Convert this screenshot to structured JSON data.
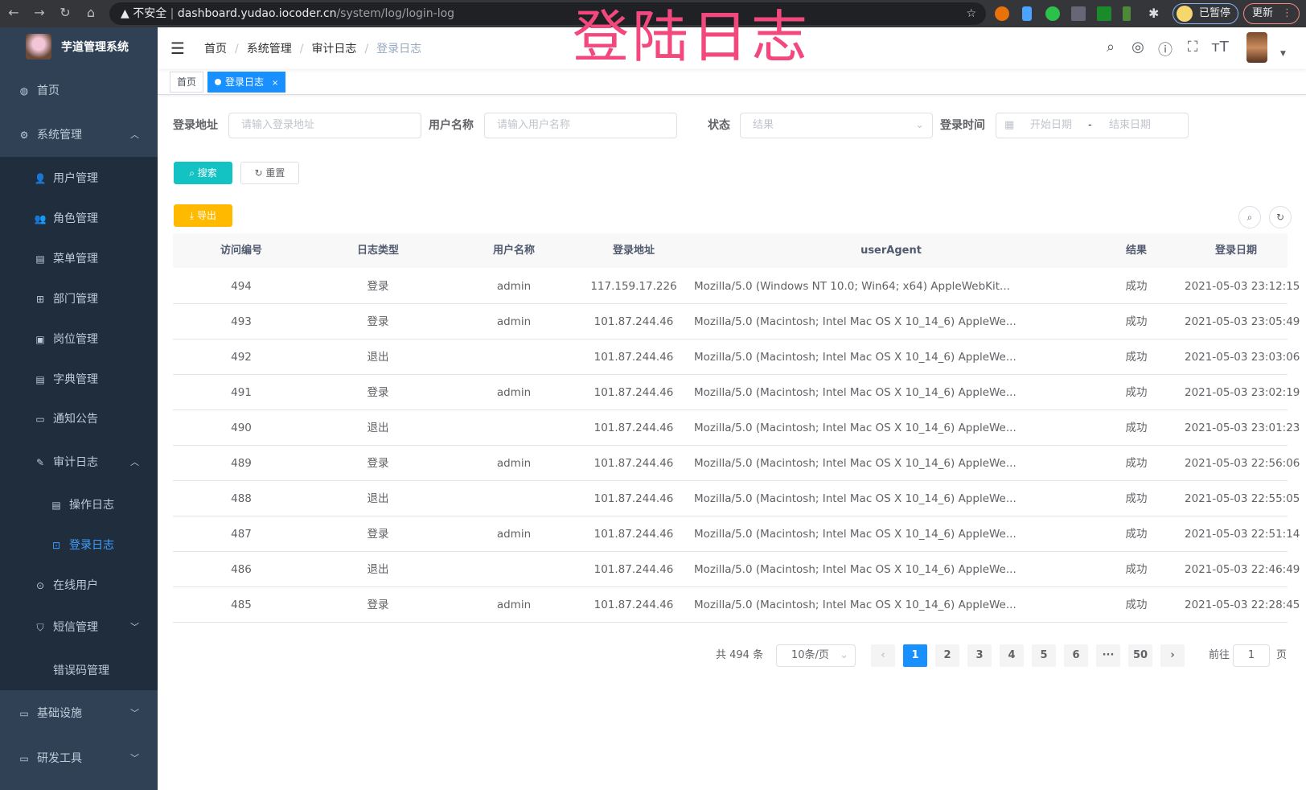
{
  "browser": {
    "url_host": "dashboard.yudao.iocoder.cn",
    "url_path": "/system/log/login-log",
    "security": "不安全",
    "profile_label": "已暂停",
    "update_label": "更新"
  },
  "overlay_title": "登陆日志",
  "app": {
    "title": "芋道管理系统"
  },
  "sidebar": {
    "items": [
      {
        "label": "首页",
        "icon": "dashboard-icon"
      },
      {
        "label": "系统管理",
        "icon": "gear-icon"
      },
      {
        "label": "用户管理",
        "icon": "user-icon"
      },
      {
        "label": "角色管理",
        "icon": "role-icon"
      },
      {
        "label": "菜单管理",
        "icon": "menu-icon"
      },
      {
        "label": "部门管理",
        "icon": "tree-icon"
      },
      {
        "label": "岗位管理",
        "icon": "post-icon"
      },
      {
        "label": "字典管理",
        "icon": "dict-icon"
      },
      {
        "label": "通知公告",
        "icon": "message-icon"
      },
      {
        "label": "审计日志",
        "icon": "edit-icon"
      },
      {
        "label": "操作日志",
        "icon": "form-icon"
      },
      {
        "label": "登录日志",
        "icon": "logininfor-icon"
      },
      {
        "label": "在线用户",
        "icon": "online-icon"
      },
      {
        "label": "短信管理",
        "icon": "shield-icon"
      },
      {
        "label": "错误码管理",
        "icon": "code-icon"
      },
      {
        "label": "基础设施",
        "icon": "monitor-icon"
      },
      {
        "label": "研发工具",
        "icon": "tool-icon"
      }
    ],
    "active": "登录日志"
  },
  "breadcrumb": [
    "首页",
    "系统管理",
    "审计日志",
    "登录日志"
  ],
  "tags": [
    {
      "label": "首页"
    },
    {
      "label": "登录日志",
      "close": "×"
    }
  ],
  "filters": {
    "address": {
      "label": "登录地址",
      "placeholder": "请输入登录地址"
    },
    "username": {
      "label": "用户名称",
      "placeholder": "请输入用户名称"
    },
    "status": {
      "label": "状态",
      "placeholder": "结果"
    },
    "time": {
      "label": "登录时间",
      "start_placeholder": "开始日期",
      "sep": "-",
      "end_placeholder": "结束日期"
    }
  },
  "buttons": {
    "search": "搜索",
    "reset": "重置",
    "export": "导出"
  },
  "colors": {
    "primary": "#1890ff",
    "search": "#13c2c2",
    "export": "#ffba00",
    "sidebar": "#304156",
    "submenu": "#1f2d3d",
    "overlay": "#f2487d"
  },
  "table": {
    "columns": [
      "访问编号",
      "日志类型",
      "用户名称",
      "登录地址",
      "userAgent",
      "结果",
      "登录日期"
    ],
    "rows": [
      [
        "494",
        "登录",
        "admin",
        "117.159.17.226",
        "Mozilla/5.0 (Windows NT 10.0; Win64; x64) AppleWebKit...",
        "成功",
        "2021-05-03 23:12:15"
      ],
      [
        "493",
        "登录",
        "admin",
        "101.87.244.46",
        "Mozilla/5.0 (Macintosh; Intel Mac OS X 10_14_6) AppleWe...",
        "成功",
        "2021-05-03 23:05:49"
      ],
      [
        "492",
        "退出",
        "",
        "101.87.244.46",
        "Mozilla/5.0 (Macintosh; Intel Mac OS X 10_14_6) AppleWe...",
        "成功",
        "2021-05-03 23:03:06"
      ],
      [
        "491",
        "登录",
        "admin",
        "101.87.244.46",
        "Mozilla/5.0 (Macintosh; Intel Mac OS X 10_14_6) AppleWe...",
        "成功",
        "2021-05-03 23:02:19"
      ],
      [
        "490",
        "退出",
        "",
        "101.87.244.46",
        "Mozilla/5.0 (Macintosh; Intel Mac OS X 10_14_6) AppleWe...",
        "成功",
        "2021-05-03 23:01:23"
      ],
      [
        "489",
        "登录",
        "admin",
        "101.87.244.46",
        "Mozilla/5.0 (Macintosh; Intel Mac OS X 10_14_6) AppleWe...",
        "成功",
        "2021-05-03 22:56:06"
      ],
      [
        "488",
        "退出",
        "",
        "101.87.244.46",
        "Mozilla/5.0 (Macintosh; Intel Mac OS X 10_14_6) AppleWe...",
        "成功",
        "2021-05-03 22:55:05"
      ],
      [
        "487",
        "登录",
        "admin",
        "101.87.244.46",
        "Mozilla/5.0 (Macintosh; Intel Mac OS X 10_14_6) AppleWe...",
        "成功",
        "2021-05-03 22:51:14"
      ],
      [
        "486",
        "退出",
        "",
        "101.87.244.46",
        "Mozilla/5.0 (Macintosh; Intel Mac OS X 10_14_6) AppleWe...",
        "成功",
        "2021-05-03 22:46:49"
      ],
      [
        "485",
        "登录",
        "admin",
        "101.87.244.46",
        "Mozilla/5.0 (Macintosh; Intel Mac OS X 10_14_6) AppleWe...",
        "成功",
        "2021-05-03 22:28:45"
      ]
    ]
  },
  "pagination": {
    "total_text": "共 494 条",
    "page_size": "10条/页",
    "pages": [
      "1",
      "2",
      "3",
      "4",
      "5",
      "6",
      "···",
      "50"
    ],
    "current": "1",
    "goto_label": "前往",
    "goto_value": "1",
    "page_suffix": "页",
    "prev": "‹",
    "next": "›"
  }
}
